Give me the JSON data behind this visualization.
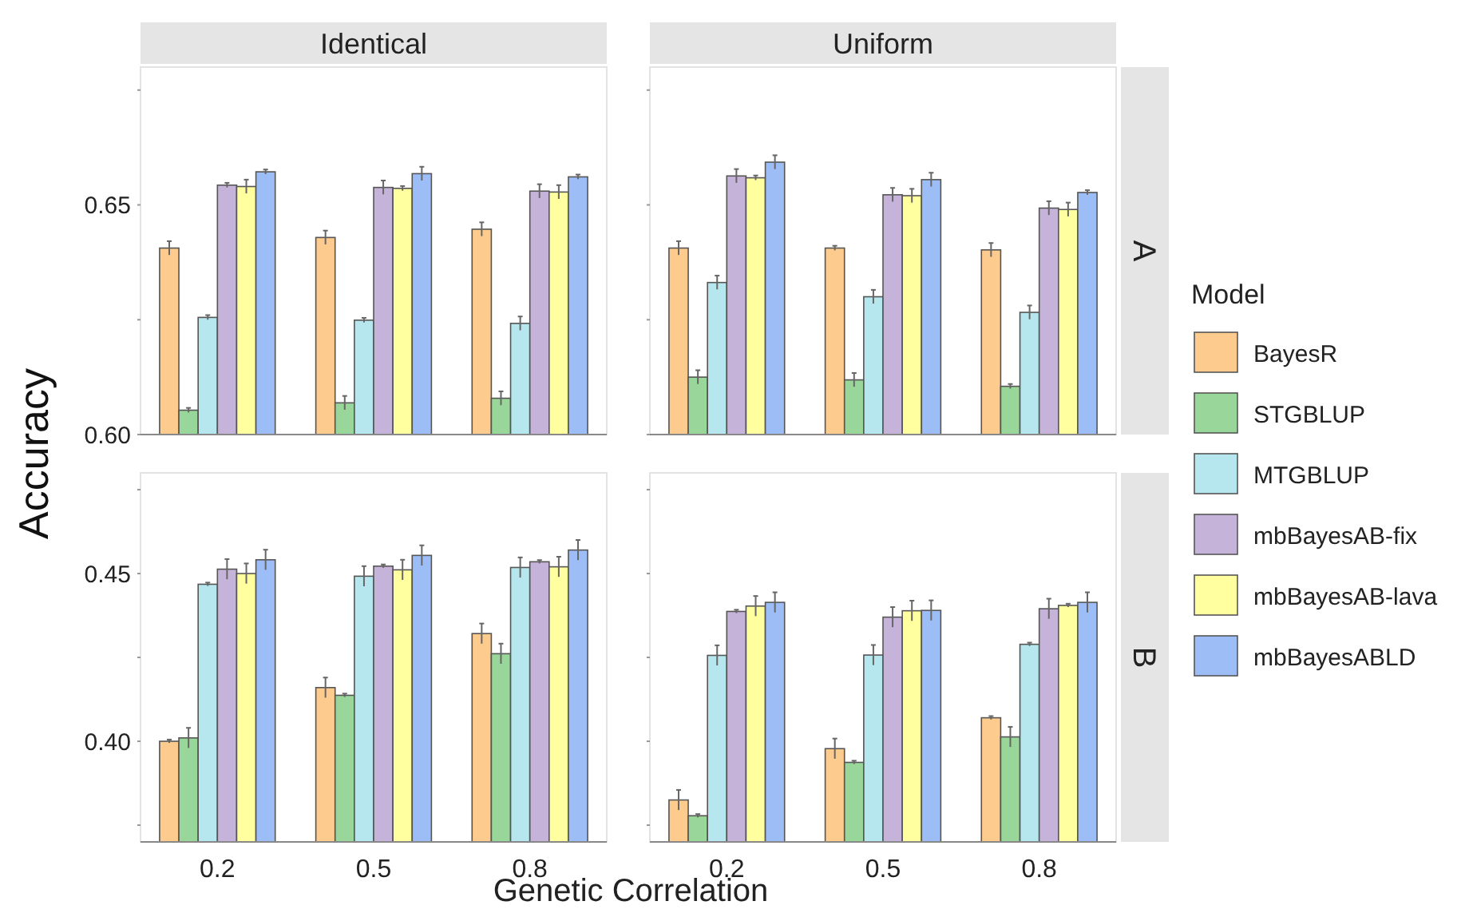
{
  "chart_data": [
    {
      "type": "bar",
      "title": "Identical",
      "ylabel": "Accuracy",
      "categories": [
        "0.2",
        "0.5",
        "0.8"
      ],
      "ylim": [
        0.6,
        0.68
      ],
      "yticks": [
        {
          "value": 0.6,
          "label": "0.60"
        },
        {
          "value": 0.625,
          "label": null
        },
        {
          "value": 0.65,
          "label": "0.65"
        },
        {
          "value": 0.675,
          "label": null
        }
      ],
      "tick_labels": "y",
      "legend": false,
      "series": [
        {
          "color": "#fdcb8d",
          "values": [
            0.6406,
            0.6429,
            0.6447
          ],
          "errors": [
            0.0015,
            0.0015,
            0.0015
          ]
        },
        {
          "color": "#99d69a",
          "values": [
            0.6053,
            0.6069,
            0.6079
          ],
          "errors": [
            0.0005,
            0.0015,
            0.0015
          ]
        },
        {
          "color": "#b6e7ee",
          "values": [
            0.6255,
            0.6249,
            0.6242
          ],
          "errors": [
            0.0005,
            0.0005,
            0.0015
          ]
        },
        {
          "color": "#c6b3d9",
          "values": [
            0.6543,
            0.6538,
            0.653
          ],
          "errors": [
            0.0005,
            0.0015,
            0.0015
          ]
        },
        {
          "color": "#ffffa0",
          "values": [
            0.654,
            0.6536,
            0.6528
          ],
          "errors": [
            0.0015,
            0.0005,
            0.0015
          ]
        },
        {
          "color": "#9dbdf6",
          "values": [
            0.6572,
            0.6568,
            0.6561
          ],
          "errors": [
            0.0005,
            0.0015,
            0.0005
          ]
        }
      ]
    },
    {
      "type": "bar",
      "title": "Uniform",
      "y2label": "A",
      "legend_title": "Model",
      "legend": "right",
      "categories": [
        "0.2",
        "0.5",
        "0.8"
      ],
      "ylim": [
        0.6,
        0.68
      ],
      "yticks": [
        {
          "value": 0.6,
          "label": null
        },
        {
          "value": 0.625,
          "label": null
        },
        {
          "value": 0.65,
          "label": null
        },
        {
          "value": 0.675,
          "label": null
        }
      ],
      "tick_labels": false,
      "series": [
        {
          "name": "BayesR",
          "color": "#fdcb8d",
          "values": [
            0.6406,
            0.6406,
            0.6402
          ],
          "errors": [
            0.0015,
            0.0005,
            0.0015
          ]
        },
        {
          "name": "STGBLUP",
          "color": "#99d69a",
          "values": [
            0.6125,
            0.6119,
            0.6105
          ],
          "errors": [
            0.0015,
            0.0015,
            0.0005
          ]
        },
        {
          "name": "MTGBLUP",
          "color": "#b6e7ee",
          "values": [
            0.6331,
            0.63,
            0.6266
          ],
          "errors": [
            0.0015,
            0.0015,
            0.0015
          ]
        },
        {
          "name": "mbBayesAB-fix",
          "color": "#c6b3d9",
          "values": [
            0.6563,
            0.6522,
            0.6493
          ],
          "errors": [
            0.0015,
            0.0015,
            0.0015
          ]
        },
        {
          "name": "mbBayesAB-lava",
          "color": "#ffffa0",
          "values": [
            0.6559,
            0.652,
            0.649
          ],
          "errors": [
            0.0005,
            0.0015,
            0.0015
          ]
        },
        {
          "name": "mbBayesABLD",
          "color": "#9dbdf6",
          "values": [
            0.6593,
            0.6555,
            0.6527
          ],
          "errors": [
            0.0015,
            0.0015,
            0.0005
          ]
        }
      ]
    },
    {
      "type": "bar",
      "xlabel": "Genetic Correlation",
      "categories": [
        "0.2",
        "0.5",
        "0.8"
      ],
      "ylim": [
        0.37,
        0.48
      ],
      "yticks": [
        {
          "value": 0.375,
          "label": null
        },
        {
          "value": 0.4,
          "label": "0.40"
        },
        {
          "value": 0.425,
          "label": null
        },
        {
          "value": 0.45,
          "label": "0.45"
        },
        {
          "value": 0.475,
          "label": null
        }
      ],
      "legend": false,
      "series": [
        {
          "color": "#fdcb8d",
          "values": [
            0.4,
            0.416,
            0.4321
          ],
          "errors": [
            0.0005,
            0.003,
            0.003
          ]
        },
        {
          "color": "#99d69a",
          "values": [
            0.401,
            0.4137,
            0.4261
          ],
          "errors": [
            0.003,
            0.0005,
            0.003
          ]
        },
        {
          "color": "#b6e7ee",
          "values": [
            0.4468,
            0.4492,
            0.4518
          ],
          "errors": [
            0.0005,
            0.003,
            0.003
          ]
        },
        {
          "color": "#c6b3d9",
          "values": [
            0.4513,
            0.4522,
            0.4535
          ],
          "errors": [
            0.003,
            0.0005,
            0.0005
          ]
        },
        {
          "color": "#ffffa0",
          "values": [
            0.45,
            0.4511,
            0.452
          ],
          "errors": [
            0.003,
            0.003,
            0.003
          ]
        },
        {
          "color": "#9dbdf6",
          "values": [
            0.4541,
            0.4554,
            0.457
          ],
          "errors": [
            0.003,
            0.003,
            0.003
          ]
        }
      ]
    },
    {
      "type": "bar",
      "y2label": "B",
      "categories": [
        "0.2",
        "0.5",
        "0.8"
      ],
      "ylim": [
        0.37,
        0.48
      ],
      "yticks": [
        {
          "value": 0.375,
          "label": null
        },
        {
          "value": 0.4,
          "label": null
        },
        {
          "value": 0.425,
          "label": null
        },
        {
          "value": 0.45,
          "label": null
        },
        {
          "value": 0.475,
          "label": null
        }
      ],
      "tick_labels": "x",
      "legend": false,
      "series": [
        {
          "color": "#fdcb8d",
          "values": [
            0.3825,
            0.3978,
            0.407
          ],
          "errors": [
            0.003,
            0.003,
            0.0005
          ]
        },
        {
          "color": "#99d69a",
          "values": [
            0.3778,
            0.3937,
            0.4013
          ],
          "errors": [
            0.0005,
            0.0005,
            0.003
          ]
        },
        {
          "color": "#b6e7ee",
          "values": [
            0.4256,
            0.4257,
            0.4289
          ],
          "errors": [
            0.003,
            0.003,
            0.0005
          ]
        },
        {
          "color": "#c6b3d9",
          "values": [
            0.4387,
            0.437,
            0.4395
          ],
          "errors": [
            0.0005,
            0.003,
            0.003
          ]
        },
        {
          "color": "#ffffa0",
          "values": [
            0.4403,
            0.4389,
            0.4405
          ],
          "errors": [
            0.003,
            0.003,
            0.0005
          ]
        },
        {
          "color": "#9dbdf6",
          "values": [
            0.4414,
            0.439,
            0.4414
          ],
          "errors": [
            0.003,
            0.003,
            0.003
          ]
        }
      ]
    }
  ]
}
